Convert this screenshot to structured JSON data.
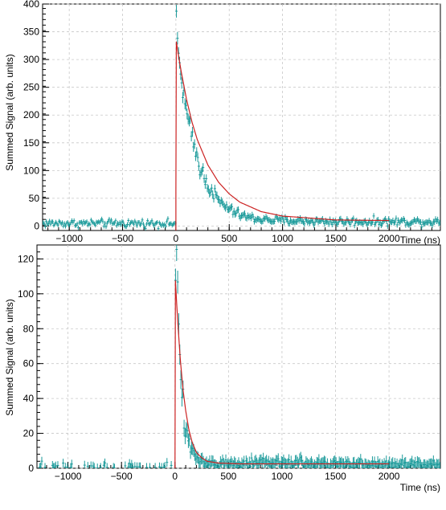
{
  "chart_data": [
    {
      "type": "scatter",
      "xlabel": "Time (ns)",
      "ylabel": "Summed Signal (arb. units)",
      "xlim": [
        -1250,
        2480
      ],
      "ylim": [
        -8,
        400
      ],
      "xticks": [
        -1000,
        -500,
        0,
        500,
        1000,
        1500,
        2000
      ],
      "yticks": [
        0,
        50,
        100,
        150,
        200,
        250,
        300,
        350,
        400
      ],
      "grid": true,
      "data_color": "#1a9a9a",
      "fit_color": "#cc2222",
      "series": [
        {
          "kind": "data-points-with-errorbars",
          "baseline": 5,
          "noise": 5,
          "error": 4,
          "pulse_start": 0,
          "x": [
            0,
            10,
            20,
            30,
            40,
            60,
            80,
            100,
            130,
            160,
            200,
            250,
            300,
            400,
            500,
            600,
            700,
            800,
            1000,
            1200,
            1500,
            2000
          ],
          "y": [
            360,
            340,
            320,
            300,
            280,
            255,
            230,
            200,
            175,
            150,
            125,
            95,
            75,
            45,
            30,
            20,
            15,
            12,
            10,
            9,
            8,
            8
          ]
        },
        {
          "kind": "fit-curve",
          "x": [
            0,
            2,
            20,
            50,
            100,
            150,
            200,
            300,
            400,
            500,
            600,
            800,
            1000,
            1500,
            2000
          ],
          "y": [
            60,
            335,
            312,
            278,
            228,
            188,
            156,
            110,
            79,
            58,
            43,
            26,
            18,
            11,
            10
          ]
        }
      ]
    },
    {
      "type": "scatter",
      "xlabel": "Time (ns)",
      "ylabel": "Summed Signal (arb. units)",
      "xlim": [
        -1290,
        2480
      ],
      "ylim": [
        0,
        128
      ],
      "xticks": [
        -1000,
        -500,
        0,
        500,
        1000,
        1500,
        2000
      ],
      "yticks": [
        0,
        20,
        40,
        60,
        80,
        100,
        120
      ],
      "grid": true,
      "data_color": "#1a9a9a",
      "fit_color": "#cc2222",
      "series": [
        {
          "kind": "data-points-with-errorbars",
          "baseline": 1.5,
          "noise": 2,
          "error": 2.5,
          "pulse_start": 0,
          "x": [
            0,
            10,
            20,
            30,
            40,
            50,
            60,
            80,
            100,
            130,
            160,
            200,
            250,
            300,
            400,
            600,
            1000,
            1500,
            2000
          ],
          "y": [
            118,
            112,
            105,
            92,
            75,
            60,
            48,
            35,
            25,
            15,
            10,
            6,
            4,
            3,
            2,
            2,
            3,
            2,
            2
          ]
        },
        {
          "kind": "fit-curve",
          "x": [
            0,
            2,
            15,
            30,
            50,
            75,
            100,
            130,
            160,
            200,
            250,
            300,
            400,
            600,
            1000,
            2000
          ],
          "y": [
            0,
            110,
            95,
            80,
            62,
            45,
            33,
            22,
            15,
            9,
            6,
            4,
            3,
            2.5,
            2.5,
            2.5
          ]
        }
      ]
    }
  ]
}
